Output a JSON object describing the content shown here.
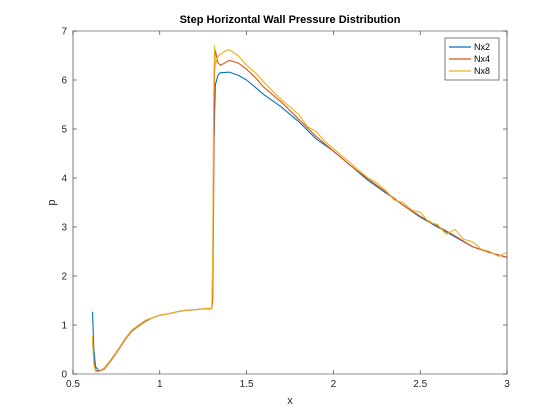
{
  "chart_data": {
    "type": "line",
    "title": "Step Horizontal Wall Pressure Distribution",
    "xlabel": "x",
    "ylabel": "p",
    "xlim": [
      0.5,
      3
    ],
    "ylim": [
      0,
      7
    ],
    "xticks": [
      0.5,
      1,
      1.5,
      2,
      2.5,
      3
    ],
    "xtick_labels": [
      "0.5",
      "1",
      "1.5",
      "2",
      "2.5",
      "3"
    ],
    "yticks": [
      0,
      1,
      2,
      3,
      4,
      5,
      6,
      7
    ],
    "ytick_labels": [
      "0",
      "1",
      "2",
      "3",
      "4",
      "5",
      "6",
      "7"
    ],
    "grid": false,
    "legend_position": "top-right",
    "series": [
      {
        "name": "Nx2",
        "color": "#0072BD",
        "x": [
          0.6125,
          0.62,
          0.63,
          0.65,
          0.68,
          0.72,
          0.76,
          0.8,
          0.84,
          0.88,
          0.92,
          0.96,
          1.0,
          1.05,
          1.1,
          1.15,
          1.2,
          1.25,
          1.29,
          1.3,
          1.305,
          1.31,
          1.32,
          1.335,
          1.35,
          1.4,
          1.45,
          1.5,
          1.55,
          1.6,
          1.7,
          1.8,
          1.9,
          2.0,
          2.1,
          2.2,
          2.3,
          2.4,
          2.5,
          2.6,
          2.7,
          2.8,
          2.9,
          3.0
        ],
        "y": [
          1.27,
          0.5,
          0.15,
          0.06,
          0.12,
          0.3,
          0.5,
          0.72,
          0.9,
          1.0,
          1.1,
          1.15,
          1.2,
          1.23,
          1.27,
          1.3,
          1.31,
          1.33,
          1.33,
          1.34,
          2.0,
          4.5,
          5.9,
          6.1,
          6.15,
          6.16,
          6.1,
          6.0,
          5.85,
          5.7,
          5.45,
          5.15,
          4.8,
          4.55,
          4.25,
          3.95,
          3.7,
          3.45,
          3.2,
          3.0,
          2.8,
          2.6,
          2.48,
          2.38
        ]
      },
      {
        "name": "Nx4",
        "color": "#D95319",
        "x": [
          0.6125,
          0.62,
          0.63,
          0.65,
          0.68,
          0.72,
          0.76,
          0.8,
          0.84,
          0.88,
          0.92,
          0.96,
          1.0,
          1.05,
          1.1,
          1.15,
          1.2,
          1.25,
          1.3,
          1.305,
          1.31,
          1.315,
          1.32,
          1.335,
          1.35,
          1.4,
          1.45,
          1.5,
          1.55,
          1.6,
          1.7,
          1.8,
          1.9,
          2.0,
          2.1,
          2.2,
          2.3,
          2.4,
          2.5,
          2.6,
          2.7,
          2.8,
          2.9,
          3.0
        ],
        "y": [
          0.7,
          0.25,
          0.08,
          0.05,
          0.1,
          0.28,
          0.48,
          0.7,
          0.88,
          0.98,
          1.08,
          1.15,
          1.2,
          1.23,
          1.27,
          1.3,
          1.31,
          1.33,
          1.34,
          1.5,
          3.5,
          6.1,
          6.6,
          6.35,
          6.3,
          6.4,
          6.35,
          6.22,
          6.05,
          5.85,
          5.55,
          5.2,
          4.85,
          4.55,
          4.25,
          3.98,
          3.72,
          3.45,
          3.22,
          3.02,
          2.82,
          2.6,
          2.48,
          2.38
        ]
      },
      {
        "name": "Nx8",
        "color": "#EDB120",
        "x": [
          0.6125,
          0.615,
          0.62,
          0.63,
          0.65,
          0.68,
          0.72,
          0.76,
          0.8,
          0.84,
          0.88,
          0.92,
          0.96,
          1.0,
          1.05,
          1.1,
          1.15,
          1.2,
          1.25,
          1.3,
          1.305,
          1.31,
          1.315,
          1.32,
          1.33,
          1.34,
          1.36,
          1.38,
          1.4,
          1.45,
          1.5,
          1.55,
          1.6,
          1.7,
          1.75,
          1.8,
          1.85,
          1.9,
          1.95,
          2.0,
          2.1,
          2.2,
          2.25,
          2.3,
          2.35,
          2.4,
          2.45,
          2.5,
          2.55,
          2.6,
          2.65,
          2.7,
          2.75,
          2.8,
          2.85,
          2.9,
          2.95,
          3.0
        ],
        "y": [
          0.78,
          0.5,
          0.2,
          0.05,
          0.05,
          0.12,
          0.3,
          0.5,
          0.72,
          0.9,
          1.0,
          1.1,
          1.15,
          1.2,
          1.23,
          1.27,
          1.3,
          1.31,
          1.33,
          1.34,
          2.5,
          5.5,
          6.7,
          6.3,
          6.45,
          6.5,
          6.55,
          6.6,
          6.62,
          6.5,
          6.3,
          6.15,
          5.95,
          5.6,
          5.45,
          5.3,
          5.05,
          4.95,
          4.75,
          4.6,
          4.3,
          4.0,
          3.9,
          3.75,
          3.55,
          3.5,
          3.35,
          3.3,
          3.1,
          3.05,
          2.85,
          2.95,
          2.75,
          2.7,
          2.55,
          2.5,
          2.4,
          2.48
        ]
      }
    ]
  }
}
